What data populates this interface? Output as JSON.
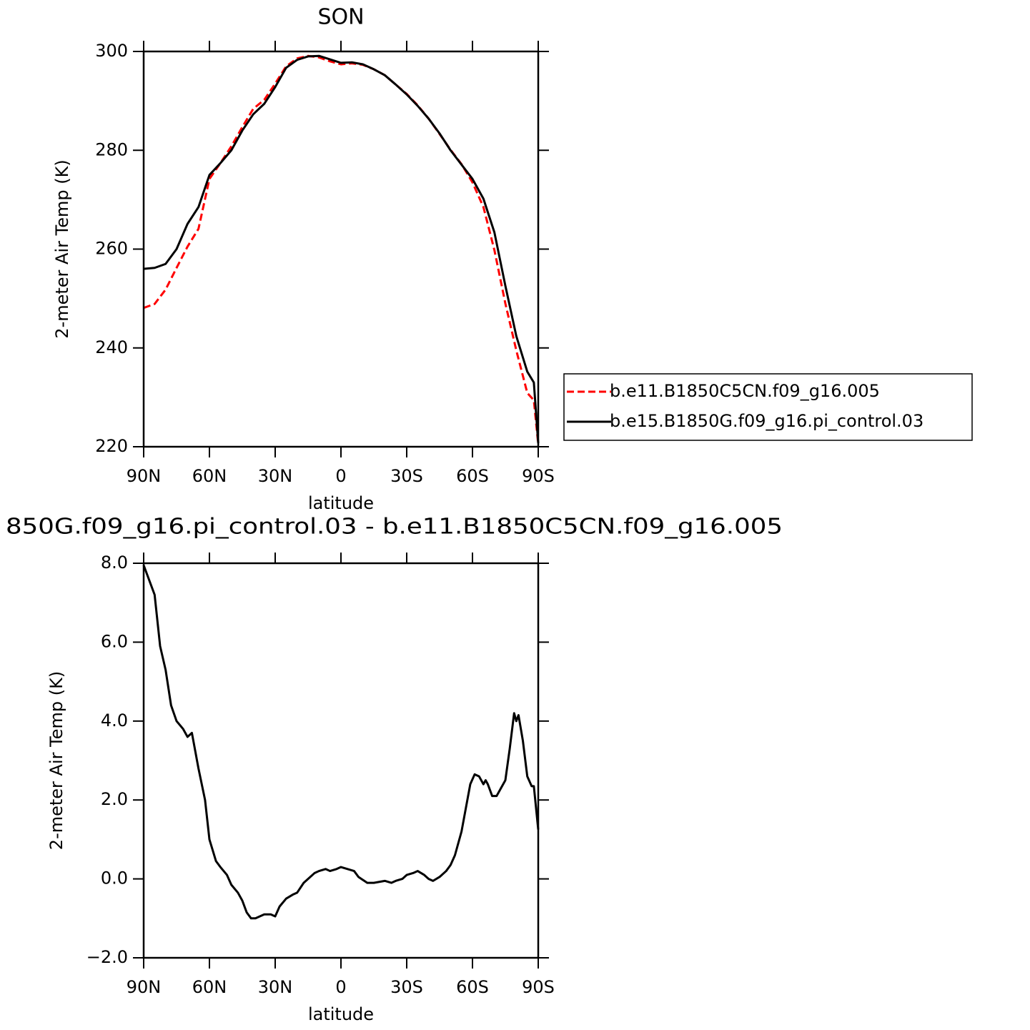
{
  "chart_data": [
    {
      "type": "line",
      "title": "SON",
      "x_label": "latitude",
      "y_label": "2-meter Air Temp (K)",
      "x": [
        90,
        85,
        80,
        75,
        70,
        65,
        60,
        55,
        50,
        45,
        40,
        35,
        30,
        25,
        20,
        15,
        10,
        5,
        0,
        -5,
        -10,
        -15,
        -20,
        -25,
        -30,
        -35,
        -40,
        -45,
        -50,
        -55,
        -60,
        -65,
        -70,
        -75,
        -80,
        -85,
        -88,
        -90
      ],
      "series": [
        {
          "name": "b.e11.B1850C5CN.f09_g16.005",
          "color": "#ff0000",
          "line_style": "dashed",
          "values": [
            248.1,
            248.9,
            251.8,
            256.2,
            260.5,
            264.1,
            274.2,
            277.4,
            280.8,
            284.7,
            288.4,
            290.2,
            293.5,
            297,
            298.6,
            299.1,
            298.8,
            298,
            297.4,
            297.6,
            297.3,
            296.4,
            295.2,
            293.3,
            291.4,
            289.1,
            286.4,
            283.3,
            280.1,
            277.2,
            273.5,
            268.5,
            259.8,
            249,
            239.5,
            230.9,
            229.4,
            220.5
          ]
        },
        {
          "name": "b.e15.B1850G.f09_g16.pi_control.03",
          "color": "#000000",
          "line_style": "solid",
          "values": [
            256.0,
            256.2,
            257.0,
            260,
            265.1,
            268.5,
            275,
            277.4,
            280,
            284,
            287.3,
            289.4,
            292.8,
            296.7,
            298.3,
            299,
            299.1,
            298.4,
            297.7,
            297.8,
            297.4,
            296.4,
            295.2,
            293.3,
            291.3,
            289,
            286.4,
            283.4,
            280.0,
            277.1,
            274.2,
            270.2,
            263.4,
            252.6,
            242.4,
            235.2,
            233,
            220.7
          ]
        }
      ],
      "xlim": [
        90,
        -90
      ],
      "xticks": [
        {
          "value": 90,
          "label": "90N"
        },
        {
          "value": 60,
          "label": "60N"
        },
        {
          "value": 30,
          "label": "30N"
        },
        0,
        {
          "value": -30,
          "label": "30S"
        },
        {
          "value": -60,
          "label": "60S"
        },
        {
          "value": -90,
          "label": "90S"
        }
      ],
      "ylim": [
        220,
        300
      ],
      "yticks": [
        220,
        240,
        260,
        280,
        300
      ],
      "legend": "right"
    },
    {
      "type": "line",
      "title": "850G.f09_g16.pi_control.03 - b.e11.B1850C5CN.f09_g16.005",
      "x_label": "latitude",
      "y_label": "2-meter Air Temp (K)",
      "x": [
        90,
        85,
        82.5,
        80,
        77.5,
        75,
        72,
        70,
        68,
        65,
        62,
        60,
        57,
        55,
        52,
        50,
        47,
        45,
        43,
        41,
        39,
        35,
        32,
        30,
        28,
        25,
        22,
        20,
        17,
        15,
        12,
        10,
        7,
        5,
        2,
        0,
        -3,
        -6,
        -8,
        -12,
        -15,
        -20,
        -23,
        -25,
        -28,
        -30,
        -33,
        -35,
        -38,
        -40,
        -42,
        -45,
        -48,
        -50,
        -52,
        -55,
        -57,
        -59,
        -61,
        -63,
        -65,
        -66,
        -67,
        -69,
        -71,
        -73,
        -75,
        -77,
        -79,
        -80,
        -81,
        -83,
        -85,
        -87,
        -88,
        -90
      ],
      "values": [
        7.95,
        7.2,
        5.9,
        5.3,
        4.4,
        4.0,
        3.8,
        3.6,
        3.7,
        2.8,
        2.0,
        1.0,
        0.45,
        0.3,
        0.1,
        -0.15,
        -0.35,
        -0.55,
        -0.85,
        -1.0,
        -1.0,
        -0.9,
        -0.9,
        -0.95,
        -0.7,
        -0.5,
        -0.4,
        -0.35,
        -0.1,
        0.0,
        0.15,
        0.2,
        0.25,
        0.2,
        0.25,
        0.3,
        0.25,
        0.2,
        0.05,
        -0.1,
        -0.1,
        -0.05,
        -0.1,
        -0.05,
        0.0,
        0.1,
        0.15,
        0.2,
        0.1,
        0.0,
        -0.05,
        0.05,
        0.2,
        0.35,
        0.6,
        1.2,
        1.8,
        2.4,
        2.65,
        2.6,
        2.4,
        2.5,
        2.4,
        2.1,
        2.1,
        2.3,
        2.5,
        3.3,
        4.2,
        4.0,
        4.15,
        3.5,
        2.6,
        2.35,
        2.35,
        1.25
      ],
      "color": "#000000",
      "xlim": [
        90,
        -90
      ],
      "xticks": [
        {
          "value": 90,
          "label": "90N"
        },
        {
          "value": 60,
          "label": "60N"
        },
        {
          "value": 30,
          "label": "30N"
        },
        0,
        {
          "value": -30,
          "label": "30S"
        },
        {
          "value": -60,
          "label": "60S"
        },
        {
          "value": -90,
          "label": "90S"
        }
      ],
      "ylim": [
        -2,
        8
      ],
      "yticks": [
        {
          "value": -2,
          "label": "−2.0"
        },
        {
          "value": 0,
          "label": "0.0"
        },
        {
          "value": 2,
          "label": "2.0"
        },
        {
          "value": 4,
          "label": "4.0"
        },
        {
          "value": 6,
          "label": "6.0"
        },
        {
          "value": 8,
          "label": "8.0"
        }
      ]
    }
  ]
}
